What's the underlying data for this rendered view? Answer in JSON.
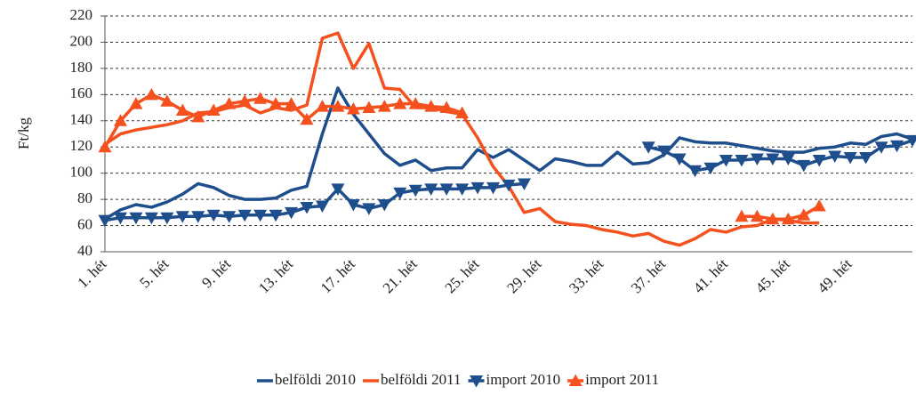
{
  "chart_data": {
    "type": "line",
    "y_label": "Ft/kg",
    "categories": [
      "1. hét",
      null,
      null,
      null,
      "5. hét",
      null,
      null,
      null,
      "9. hét",
      null,
      null,
      null,
      "13. hét",
      null,
      null,
      null,
      "17. hét",
      null,
      null,
      null,
      "21. hét",
      null,
      null,
      null,
      "25. hét",
      null,
      null,
      null,
      "29. hét",
      null,
      null,
      null,
      "33. hét",
      null,
      null,
      null,
      "37. hét",
      null,
      null,
      null,
      "41. hét",
      null,
      null,
      null,
      "45. hét",
      null,
      null,
      null,
      "49. hét",
      null,
      null,
      null,
      null
    ],
    "ylim": [
      40,
      220
    ],
    "yticks": [
      40,
      60,
      80,
      100,
      120,
      140,
      160,
      180,
      200,
      220
    ],
    "grid": true,
    "legend": "bottom",
    "series": [
      {
        "name": "belföldi 2010",
        "color": "#1f4e8c",
        "marker": "none",
        "values": [
          65,
          72,
          76,
          74,
          78,
          84,
          92,
          89,
          83,
          80,
          80,
          81,
          87,
          90,
          130,
          165,
          145,
          130,
          115,
          106,
          110,
          102,
          104,
          104,
          118,
          112,
          118,
          110,
          102,
          111,
          109,
          106,
          106,
          116,
          107,
          108,
          114,
          127,
          124,
          123,
          123,
          121,
          119,
          117,
          116,
          116,
          119,
          120,
          123,
          122,
          128,
          130,
          126
        ]
      },
      {
        "name": "belföldi 2011",
        "color": "#f4511e",
        "marker": "none",
        "values": [
          122,
          130,
          133,
          135,
          137,
          140,
          146,
          147,
          150,
          152,
          146,
          150,
          148,
          152,
          203,
          207,
          180,
          199,
          165,
          164,
          150,
          150,
          147,
          145,
          127,
          105,
          90,
          70,
          73,
          63,
          61,
          60,
          57,
          55,
          52,
          54,
          48,
          45,
          50,
          57,
          55,
          59,
          60,
          65,
          64,
          62,
          62,
          null,
          null,
          null,
          null,
          null,
          null
        ]
      },
      {
        "name": "import 2010",
        "color": "#1f4e8c",
        "marker": "triangle-down",
        "values": [
          64,
          66,
          66,
          66,
          66,
          67,
          67,
          68,
          67,
          68,
          68,
          68,
          70,
          74,
          75,
          88,
          76,
          73,
          76,
          85,
          87,
          88,
          88,
          88,
          89,
          89,
          91,
          92,
          null,
          null,
          null,
          null,
          null,
          null,
          null,
          120,
          117,
          111,
          102,
          104,
          110,
          110,
          111,
          111,
          111,
          106,
          110,
          113,
          112,
          112,
          120,
          121,
          125
        ]
      },
      {
        "name": "import 2011",
        "color": "#f4511e",
        "marker": "triangle-up",
        "values": [
          120,
          140,
          153,
          160,
          155,
          148,
          143,
          148,
          153,
          155,
          157,
          153,
          153,
          141,
          151,
          151,
          149,
          150,
          151,
          153,
          153,
          151,
          150,
          146,
          null,
          null,
          null,
          null,
          null,
          null,
          null,
          null,
          null,
          null,
          null,
          null,
          null,
          null,
          null,
          null,
          null,
          67,
          67,
          65,
          65,
          68,
          75,
          null,
          null,
          null,
          null,
          null,
          null
        ]
      }
    ]
  }
}
